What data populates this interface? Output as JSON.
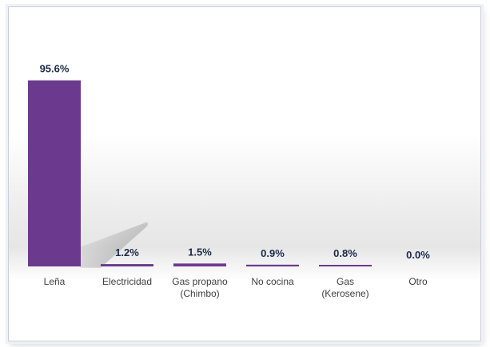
{
  "chart_data": {
    "type": "bar",
    "categories": [
      "Leña",
      "Electricidad",
      "Gas propano (Chimbo)",
      "No cocina",
      "Gas (Kerosene)",
      "Otro"
    ],
    "category_lines": [
      [
        "Leña"
      ],
      [
        "Electricidad"
      ],
      [
        "Gas propano",
        "(Chimbo)"
      ],
      [
        "No cocina"
      ],
      [
        "Gas",
        "(Kerosene)"
      ],
      [
        "Otro"
      ]
    ],
    "values": [
      95.6,
      1.2,
      1.5,
      0.9,
      0.8,
      0.0
    ],
    "value_labels": [
      "95.6%",
      "1.2%",
      "1.5%",
      "0.9%",
      "0.8%",
      "0.0%"
    ],
    "unit": "%",
    "ylim": [
      0,
      100
    ],
    "bar_color": "#6b3a8e",
    "grid": false,
    "legend": "none",
    "title": "",
    "xlabel": "",
    "ylabel": ""
  }
}
